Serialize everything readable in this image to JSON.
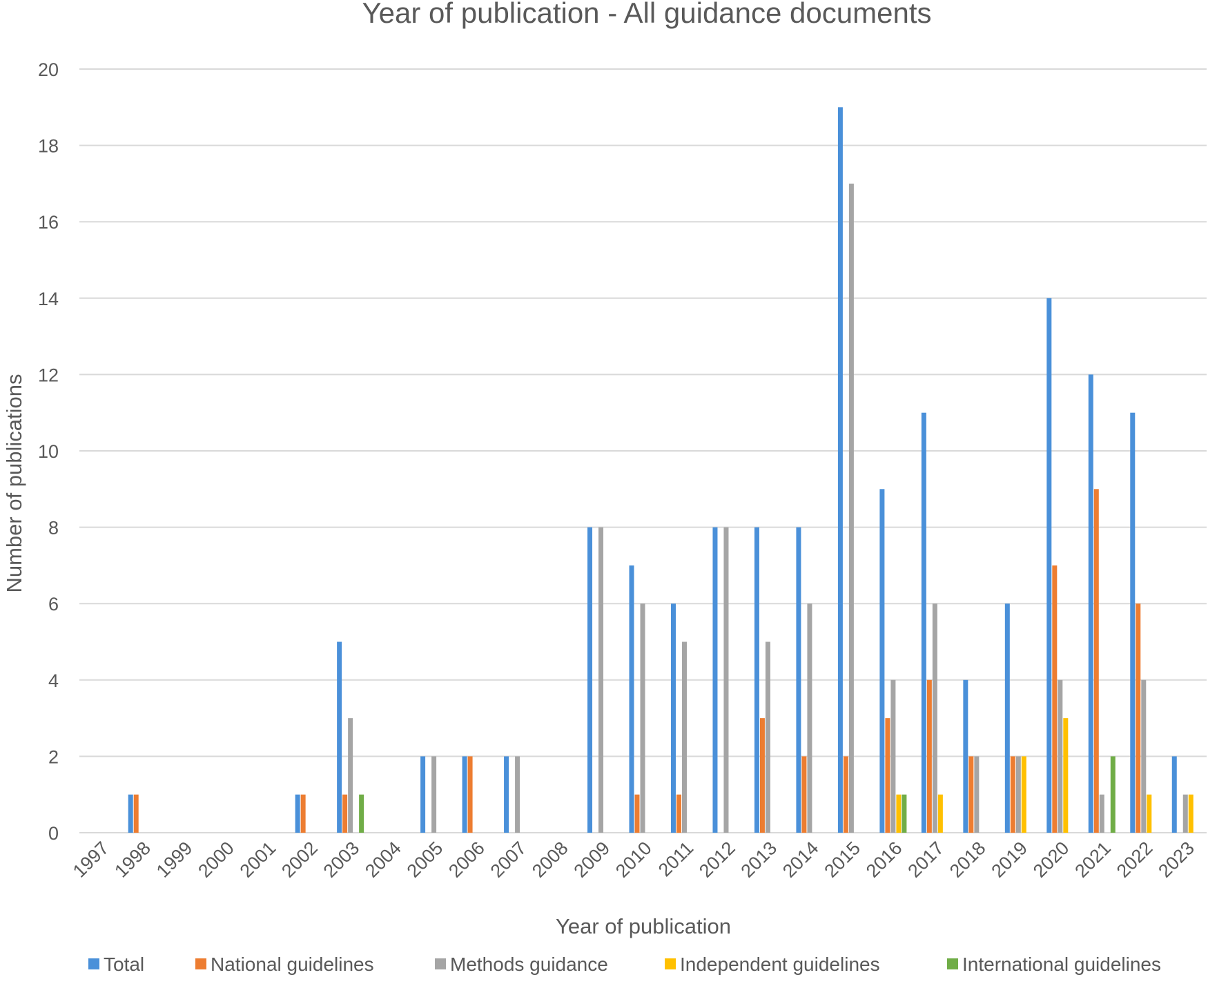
{
  "chart_data": {
    "type": "bar",
    "title": "Year of publication - All guidance documents",
    "xlabel": "Year of publication",
    "ylabel": "Number of publications",
    "ylim": [
      0,
      20
    ],
    "yticks": [
      0,
      2,
      4,
      6,
      8,
      10,
      12,
      14,
      16,
      18,
      20
    ],
    "grid": true,
    "legend_position": "bottom",
    "categories": [
      "1997",
      "1998",
      "1999",
      "2000",
      "2001",
      "2002",
      "2003",
      "2004",
      "2005",
      "2006",
      "2007",
      "2008",
      "2009",
      "2010",
      "2011",
      "2012",
      "2013",
      "2014",
      "2015",
      "2016",
      "2017",
      "2018",
      "2019",
      "2020",
      "2021",
      "2022",
      "2023"
    ],
    "series": [
      {
        "name": "Total",
        "color": "#4A90D9",
        "values": [
          0,
          1,
          0,
          0,
          0,
          1,
          5,
          0,
          2,
          2,
          2,
          0,
          8,
          7,
          6,
          8,
          8,
          8,
          19,
          9,
          11,
          4,
          6,
          14,
          12,
          11,
          2
        ]
      },
      {
        "name": "National guidelines",
        "color": "#ED7D31",
        "values": [
          0,
          1,
          0,
          0,
          0,
          1,
          1,
          0,
          0,
          2,
          0,
          0,
          0,
          1,
          1,
          0,
          3,
          2,
          2,
          3,
          4,
          2,
          2,
          7,
          9,
          6,
          0
        ]
      },
      {
        "name": "Methods guidance",
        "color": "#A5A5A5",
        "values": [
          0,
          0,
          0,
          0,
          0,
          0,
          3,
          0,
          2,
          0,
          2,
          0,
          8,
          6,
          5,
          8,
          5,
          6,
          17,
          4,
          6,
          2,
          2,
          4,
          1,
          4,
          1
        ]
      },
      {
        "name": "Independent guidelines",
        "color": "#FFC000",
        "values": [
          0,
          0,
          0,
          0,
          0,
          0,
          0,
          0,
          0,
          0,
          0,
          0,
          0,
          0,
          0,
          0,
          0,
          0,
          0,
          1,
          1,
          0,
          2,
          3,
          0,
          1,
          1
        ]
      },
      {
        "name": "International guidelines",
        "color": "#70AD47",
        "values": [
          0,
          0,
          0,
          0,
          0,
          0,
          1,
          0,
          0,
          0,
          0,
          0,
          0,
          0,
          0,
          0,
          0,
          0,
          0,
          1,
          0,
          0,
          0,
          0,
          2,
          0,
          0
        ]
      }
    ]
  }
}
